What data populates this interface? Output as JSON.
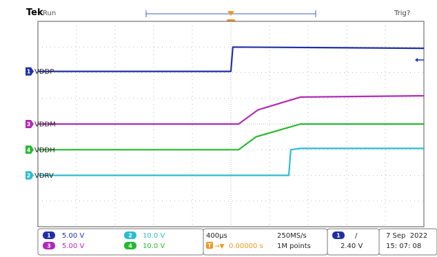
{
  "header": {
    "brand": "Tek",
    "acq_state": "Run",
    "trigger_state": "Trig?"
  },
  "colors": {
    "ch1": "#1f2fa8",
    "ch2": "#2bbcd0",
    "ch3": "#b02ab8",
    "ch4": "#26b82f",
    "trigger": "#f0961e",
    "grid": "#b8b8b8",
    "frame": "#555555"
  },
  "channels": [
    {
      "id": "ch1",
      "number": "1",
      "label": "VDDP",
      "scale": "5.00 V"
    },
    {
      "id": "ch2",
      "number": "2",
      "label": "VDRV",
      "scale": "10.0 V"
    },
    {
      "id": "ch3",
      "number": "3",
      "label": "VDDM",
      "scale": "5.00 V"
    },
    {
      "id": "ch4",
      "number": "4",
      "label": "VDDH",
      "scale": "10.0 V"
    }
  ],
  "trigger": {
    "marker": "T",
    "channel_number": "1",
    "slope_symbol": "/",
    "level": "2.40 V",
    "position_readout": "0.00000 s",
    "level_arrow_icon": "arrow-left-icon"
  },
  "timebase": {
    "scale": "400µs",
    "sample_rate": "250MS/s",
    "record_length": "1M points"
  },
  "datetime": {
    "date": "7 Sep  2022",
    "time": "15: 07: 08"
  },
  "chart_data": {
    "type": "line",
    "x_unit": "divisions relative to trigger",
    "xlim": [
      -5,
      5
    ],
    "ylim": [
      -4,
      4
    ],
    "grid": true,
    "series": [
      {
        "name": "VDDP",
        "channel": "ch1",
        "x": [
          -5,
          0,
          0.05,
          5
        ],
        "y": [
          2.05,
          2.05,
          3.0,
          2.95
        ]
      },
      {
        "name": "VDDM",
        "channel": "ch3",
        "x": [
          -5,
          0.2,
          0.7,
          1.8,
          5
        ],
        "y": [
          0,
          0,
          0.55,
          1.05,
          1.1
        ]
      },
      {
        "name": "VDDH",
        "channel": "ch4",
        "x": [
          -5,
          0.2,
          0.65,
          1.8,
          5
        ],
        "y": [
          -1.0,
          -1.0,
          -0.5,
          0.0,
          0.0
        ]
      },
      {
        "name": "VDRV",
        "channel": "ch2",
        "x": [
          -5,
          1.5,
          1.55,
          1.8,
          5
        ],
        "y": [
          -2.0,
          -2.0,
          -1.0,
          -0.95,
          -0.95
        ]
      }
    ]
  }
}
